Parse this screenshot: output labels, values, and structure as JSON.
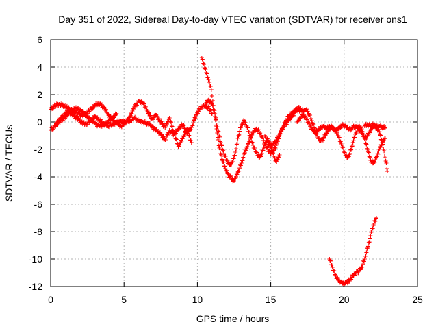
{
  "chart_data": {
    "type": "scatter",
    "title": "Day 351 of 2022, Sidereal Day-to-day VTEC variation (SDTVAR) for receiver ons1",
    "xlabel": "GPS time / hours",
    "ylabel": "SDTVAR / TECUs",
    "xlim": [
      0,
      25
    ],
    "ylim": [
      -12,
      6
    ],
    "x_ticks": [
      0,
      5,
      10,
      15,
      20,
      25
    ],
    "y_ticks": [
      -12,
      -10,
      -8,
      -6,
      -4,
      -2,
      0,
      2,
      4,
      6
    ],
    "grid": true,
    "marker": "plus",
    "color": "#ff0000",
    "series": [
      {
        "name": "SDTVAR",
        "traces": [
          {
            "x": [
              0,
              0.3,
              0.6,
              0.9,
              1.2,
              1.5,
              1.8,
              2.1,
              2.4,
              2.7,
              3.0,
              3.3,
              3.6,
              3.9,
              4.2,
              4.5,
              4.8,
              5.1,
              5.4,
              5.7,
              6.0,
              6.3,
              6.6,
              6.9,
              7.2,
              7.5,
              7.8,
              8.1,
              8.4,
              8.7,
              9.0,
              9.3,
              9.6,
              9.9,
              10.2,
              10.5,
              10.8,
              11.0
            ],
            "y": [
              -0.6,
              -0.3,
              0.2,
              0.5,
              0.8,
              0.5,
              0.3,
              0.0,
              -0.2,
              0.1,
              0.4,
              0.2,
              -0.1,
              -0.3,
              -0.2,
              0.0,
              0.1,
              0.0,
              0.1,
              0.3,
              0.1,
              0.0,
              -0.1,
              -0.3,
              -0.6,
              -0.9,
              -1.3,
              -0.6,
              -0.9,
              -0.5,
              -0.2,
              -0.8,
              -0.4,
              0.5,
              1.0,
              1.2,
              1.0,
              0.6
            ]
          },
          {
            "x": [
              0,
              0.3,
              0.6,
              0.9,
              1.2,
              1.5,
              1.8,
              2.1,
              2.4,
              2.7,
              3.0,
              3.3,
              3.6,
              3.9,
              4.2,
              4.5,
              4.8,
              5.1,
              5.4,
              5.7,
              6.0,
              6.3
            ],
            "y": [
              0.9,
              1.2,
              1.3,
              1.2,
              1.0,
              0.8,
              0.7,
              0.5,
              0.6,
              0.9,
              1.2,
              1.4,
              1.1,
              0.6,
              0.2,
              -0.1,
              -0.3,
              -0.1,
              0.4,
              1.1,
              1.5,
              1.4
            ]
          },
          {
            "x": [
              0.3,
              0.6,
              0.9,
              1.2,
              1.5,
              1.8,
              2.1,
              2.4,
              2.7,
              3.0,
              3.3,
              3.6,
              3.9,
              4.2,
              4.5
            ],
            "y": [
              -0.3,
              0.0,
              0.3,
              0.6,
              0.9,
              1.0,
              0.8,
              0.5,
              0.2,
              -0.1,
              -0.3,
              -0.2,
              0.0,
              0.3,
              0.6
            ]
          },
          {
            "x": [
              6.3,
              6.6,
              6.9,
              7.2,
              7.5,
              7.8,
              8.1,
              8.4,
              8.7,
              9.0,
              9.3,
              9.6
            ],
            "y": [
              1.4,
              0.8,
              0.2,
              0.5,
              0.0,
              -0.4,
              0.3,
              -0.8,
              -1.8,
              -1.2,
              -0.5,
              -1.5
            ]
          },
          {
            "x": [
              10.3,
              10.45,
              10.6,
              10.75,
              10.9,
              11.0,
              11.1,
              11.2,
              11.35,
              11.5,
              11.7,
              11.9,
              12.1,
              12.3,
              12.5,
              12.6,
              12.8,
              13.0,
              13.2,
              13.4,
              13.6,
              13.8,
              14.0,
              14.2,
              14.4,
              14.6,
              14.8,
              15.0,
              15.2,
              15.4,
              15.6,
              15.8,
              16.0,
              16.2,
              16.4,
              16.6,
              16.8,
              17.0
            ],
            "y": [
              4.7,
              4.2,
              3.6,
              3.1,
              2.6,
              1.9,
              1.2,
              0.4,
              -0.8,
              -1.9,
              -2.8,
              -3.4,
              -3.8,
              -4.1,
              -4.3,
              -4.1,
              -3.6,
              -3.0,
              -2.3,
              -1.8,
              -1.2,
              -0.7,
              -0.5,
              -0.7,
              -1.1,
              -1.6,
              -2.0,
              -2.3,
              -2.1,
              -1.6,
              -1.0,
              -0.4,
              0.0,
              0.4,
              0.6,
              0.8,
              0.9,
              0.8
            ]
          },
          {
            "x": [
              10.6,
              10.8,
              11.0,
              11.2,
              11.4,
              11.6,
              11.8,
              12.0,
              12.2,
              12.4,
              12.6,
              12.8,
              13.0,
              13.2,
              13.4,
              13.6,
              13.8,
              14.0,
              14.2,
              14.4,
              14.6,
              14.8,
              15.0,
              15.2,
              15.4,
              15.6
            ],
            "y": [
              1.4,
              1.6,
              1.3,
              0.6,
              -0.6,
              -1.5,
              -2.3,
              -2.8,
              -3.1,
              -2.9,
              -2.2,
              -1.0,
              -0.2,
              0.1,
              -0.4,
              -1.0,
              -1.7,
              -2.2,
              -2.6,
              -2.3,
              -1.6,
              -1.2,
              -1.8,
              -2.5,
              -2.9,
              -2.4
            ]
          },
          {
            "x": [
              14.6,
              14.8,
              15.0,
              15.2,
              15.4,
              15.6,
              15.8,
              16.0,
              16.2,
              16.4,
              16.6,
              16.8,
              17.0,
              17.2,
              17.4,
              17.6,
              17.8,
              18.0,
              18.2,
              18.4,
              18.6,
              18.8,
              19.0,
              19.2,
              19.4,
              19.6,
              19.8,
              20.0,
              20.2,
              20.4,
              20.6,
              20.8,
              21.0,
              21.2,
              21.4,
              21.6,
              21.8,
              22.0,
              22.2,
              22.4,
              22.6,
              22.8
            ],
            "y": [
              -1.0,
              -1.5,
              -1.8,
              -1.6,
              -1.3,
              -0.9,
              -0.5,
              -0.2,
              0.1,
              0.4,
              0.6,
              1.0,
              1.0,
              0.8,
              0.9,
              0.6,
              0.1,
              -0.5,
              -1.1,
              -1.4,
              -1.2,
              -0.8,
              -0.5,
              -0.4,
              -0.6,
              -1.0,
              -1.6,
              -2.2,
              -2.6,
              -2.3,
              -1.5,
              -0.8,
              -0.3,
              -0.5,
              -1.2,
              -2.0,
              -2.8,
              -3.0,
              -2.6,
              -2.0,
              -1.5,
              -1.2
            ]
          },
          {
            "x": [
              16.8,
              17.0,
              17.2,
              17.4,
              17.6,
              17.8,
              18.0,
              18.2,
              18.4,
              18.6,
              18.8,
              19.0,
              19.2,
              19.4,
              19.6,
              19.8,
              20.0,
              20.2,
              20.4,
              20.6,
              20.8,
              21.0,
              21.2,
              21.4,
              21.6,
              21.8,
              22.0,
              22.2,
              22.4,
              22.6,
              22.8,
              22.95
            ],
            "y": [
              0.0,
              0.3,
              0.5,
              0.3,
              -0.1,
              -0.5,
              -0.8,
              -0.6,
              -0.4,
              -0.3,
              -0.5,
              -0.3,
              -0.4,
              -0.6,
              -0.5,
              -0.3,
              -0.2,
              -0.4,
              -0.6,
              -0.4,
              -0.3,
              -0.5,
              -0.8,
              -1.2,
              -1.0,
              -0.6,
              -0.3,
              -0.4,
              -0.7,
              -1.5,
              -2.6,
              -3.6
            ]
          },
          {
            "x": [
              21.4,
              21.6,
              21.8,
              22.0,
              22.2,
              22.4,
              22.6,
              22.8
            ],
            "y": [
              -0.3,
              -0.2,
              -0.3,
              -0.2,
              -0.3,
              -0.3,
              -0.4,
              -0.4
            ]
          },
          {
            "x": [
              19.0,
              19.2,
              19.4,
              19.6,
              19.8,
              20.0,
              20.2,
              20.4,
              20.6,
              20.8,
              21.0,
              21.2,
              21.4,
              21.6,
              21.8,
              22.0,
              22.2
            ],
            "y": [
              -10.0,
              -10.6,
              -11.2,
              -11.5,
              -11.7,
              -11.8,
              -11.7,
              -11.5,
              -11.2,
              -11.0,
              -10.9,
              -10.6,
              -10.0,
              -9.2,
              -8.3,
              -7.5,
              -7.0
            ]
          }
        ]
      }
    ]
  }
}
